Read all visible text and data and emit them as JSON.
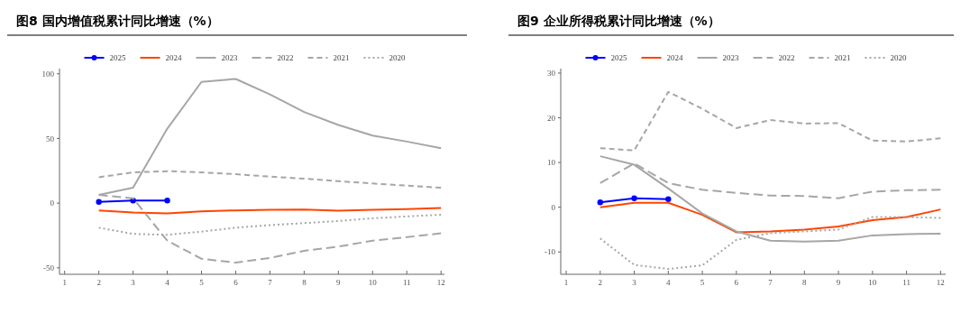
{
  "chart_data": [
    {
      "type": "line",
      "title": "图8 国内增值税累计同比增速（%）",
      "x": [
        2,
        3,
        4,
        5,
        6,
        7,
        8,
        9,
        10,
        11,
        12
      ],
      "xlim": [
        0.85,
        12.1
      ],
      "xticks": [
        1,
        2,
        3,
        4,
        5,
        6,
        7,
        8,
        9,
        10,
        11,
        12
      ],
      "ylim": [
        -55,
        104
      ],
      "yticks": [
        -50,
        0,
        50,
        100
      ],
      "grid": false,
      "legend": "top",
      "series": [
        {
          "name": "2025",
          "color": "#0000ff",
          "marker": "circle",
          "line_style": "solid",
          "x": [
            2,
            3,
            4
          ],
          "values": [
            1,
            2,
            2
          ]
        },
        {
          "name": "2024",
          "color": "#ff4500",
          "marker": "none",
          "line_style": "solid",
          "values": [
            -5.6,
            -7.2,
            -8,
            -6.3,
            -5.6,
            -5.2,
            -5,
            -5.8,
            -5.2,
            -4.7,
            -3.7
          ]
        },
        {
          "name": "2023",
          "color": "#a6a6a6",
          "marker": "none",
          "line_style": "solid",
          "values": [
            6.3,
            12,
            57.6,
            93.7,
            96,
            84,
            70.4,
            60.4,
            52.2,
            47.6,
            42.4
          ]
        },
        {
          "name": "2022",
          "color": "#a6a6a6",
          "marker": "none",
          "line_style": "longdash",
          "values": [
            6.3,
            3.7,
            -29,
            -43,
            -46,
            -42.4,
            -36.8,
            -33.6,
            -29,
            -26.3,
            -23.3
          ]
        },
        {
          "name": "2021",
          "color": "#a6a6a6",
          "marker": "none",
          "line_style": "dashed",
          "values": [
            20,
            23.8,
            24.7,
            23.8,
            22.4,
            20.5,
            18.9,
            17,
            15.2,
            13.5,
            11.9
          ]
        },
        {
          "name": "2020",
          "color": "#a6a6a6",
          "marker": "none",
          "line_style": "dotted",
          "values": [
            -19,
            -23.8,
            -24.5,
            -22,
            -19,
            -17,
            -15.4,
            -13.8,
            -11.7,
            -10.3,
            -8.9
          ]
        }
      ]
    },
    {
      "type": "line",
      "title": "图9 企业所得税累计同比增速（%）",
      "x": [
        2,
        3,
        4,
        5,
        6,
        7,
        8,
        9,
        10,
        11,
        12
      ],
      "xlim": [
        0.84,
        12.15
      ],
      "xticks": [
        1,
        2,
        3,
        4,
        5,
        6,
        7,
        8,
        9,
        10,
        11,
        12
      ],
      "ylim": [
        -15,
        31
      ],
      "yticks": [
        -10,
        0,
        10,
        20,
        30
      ],
      "grid": false,
      "legend": "top",
      "series": [
        {
          "name": "2025",
          "color": "#0000ff",
          "marker": "circle",
          "line_style": "solid",
          "x": [
            2,
            3,
            4
          ],
          "values": [
            1.1,
            2,
            1.8
          ]
        },
        {
          "name": "2024",
          "color": "#ff4500",
          "marker": "none",
          "line_style": "solid",
          "values": [
            0,
            1,
            1,
            -1.7,
            -5.6,
            -5.4,
            -5,
            -4.3,
            -2.9,
            -2.2,
            -0.5
          ]
        },
        {
          "name": "2023",
          "color": "#a6a6a6",
          "marker": "none",
          "line_style": "solid",
          "values": [
            11.4,
            9.5,
            4.2,
            -1.4,
            -5.4,
            -7.5,
            -7.7,
            -7.5,
            -6.3,
            -6,
            -5.9
          ]
        },
        {
          "name": "2022",
          "color": "#a6a6a6",
          "marker": "none",
          "line_style": "longdash",
          "values": [
            5.4,
            9.8,
            5.4,
            3.9,
            3.2,
            2.6,
            2.5,
            2,
            3.5,
            3.8,
            3.9
          ]
        },
        {
          "name": "2021",
          "color": "#a6a6a6",
          "marker": "none",
          "line_style": "dashed",
          "values": [
            13.2,
            12.7,
            25.8,
            22,
            17.7,
            19.5,
            18.7,
            18.8,
            14.9,
            14.7,
            15.4
          ]
        },
        {
          "name": "2020",
          "color": "#a6a6a6",
          "marker": "none",
          "line_style": "dotted",
          "values": [
            -7,
            -12.9,
            -13.8,
            -13,
            -7.3,
            -5.8,
            -5.4,
            -5,
            -2.2,
            -2.2,
            -2.4
          ]
        }
      ]
    }
  ]
}
